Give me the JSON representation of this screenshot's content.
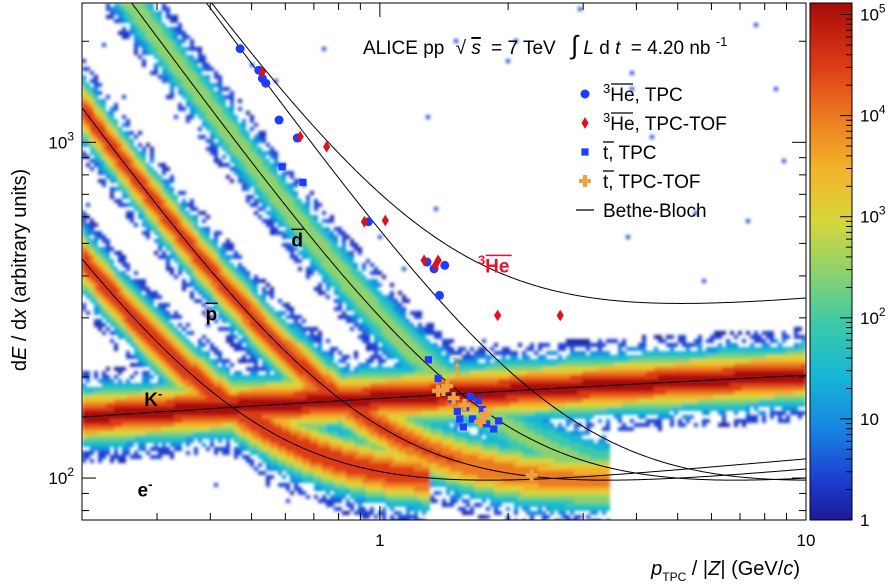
{
  "chart_data": {
    "type": "heatmap",
    "title": "ALICE pp",
    "title_parts": {
      "sqrt": "√",
      "s": "s",
      "eq": "= 7 TeV",
      "int_sym": "∫",
      "L": "L",
      "d": "d",
      "t": "t",
      "lumi_val": "= 4.20 nb",
      "lumi_exp": "-1"
    },
    "xlabel": {
      "p": "p",
      "sub": "TPC",
      "rest_a": " / |",
      "Z": "Z",
      "rest_b": "| (GeV/",
      "c": "c",
      "rest_c": ")"
    },
    "ylabel": {
      "d": "d",
      "E": "E",
      "mid": " / d",
      "x": "x",
      "rest": " (arbitrary units)"
    },
    "x_scale": "log",
    "y_scale": "log",
    "xlim": [
      0.2,
      10
    ],
    "ylim": [
      75,
      2600
    ],
    "x_ticks": [
      {
        "value": 1,
        "label": "1"
      },
      {
        "value": 10,
        "label": "10"
      }
    ],
    "y_ticks": [
      {
        "value": 100,
        "base": "10",
        "exp": "2"
      },
      {
        "value": 1000,
        "base": "10",
        "exp": "3"
      }
    ],
    "z_scale": "log",
    "zlim": [
      1,
      130000
    ],
    "colorbar_ticks": [
      {
        "value": 1,
        "base": "1",
        "exp": ""
      },
      {
        "value": 10,
        "base": "10",
        "exp": ""
      },
      {
        "value": 100,
        "base": "10",
        "exp": "2"
      },
      {
        "value": 1000,
        "base": "10",
        "exp": "3"
      },
      {
        "value": 10000,
        "base": "10",
        "exp": "4"
      },
      {
        "value": 100000,
        "base": "10",
        "exp": "5"
      }
    ],
    "band_labels": [
      {
        "id": "e",
        "base": "e",
        "sup": "-",
        "bar": false
      },
      {
        "id": "K",
        "base": "K",
        "sup": "-",
        "bar": false
      },
      {
        "id": "p",
        "base": "p",
        "sup": "",
        "bar": true
      },
      {
        "id": "d",
        "base": "d",
        "sup": "",
        "bar": true
      }
    ],
    "special_labels": [
      {
        "id": "he3",
        "pre": "3",
        "base": "He",
        "color": "#e8102a"
      },
      {
        "id": "t",
        "pre": "",
        "base": "t",
        "color": "#f0a040"
      }
    ],
    "legend": {
      "position": "top-right",
      "entries": [
        {
          "marker": "circle",
          "color": "#1e3cff",
          "sup": "3",
          "name": "He",
          "bar": true,
          "suffix": ", TPC"
        },
        {
          "marker": "diamond",
          "color": "#e0101e",
          "sup": "3",
          "name": "He",
          "bar": true,
          "suffix": ", TPC-TOF"
        },
        {
          "marker": "square",
          "color": "#1e3cff",
          "sup": "",
          "name": "t",
          "bar": true,
          "suffix": ", TPC"
        },
        {
          "marker": "cross",
          "color": "#f0a040",
          "sup": "",
          "name": "t",
          "bar": true,
          "suffix": ", TPC-TOF"
        },
        {
          "marker": "line",
          "color": "#000000",
          "sup": "",
          "name": "Bethe-Bloch",
          "bar": false,
          "suffix": ""
        }
      ]
    },
    "series": [
      {
        "marker": "circle",
        "color": "#1e3cff",
        "x": [
          0.47,
          0.52,
          0.53,
          0.54,
          0.58,
          0.64,
          0.94,
          1.29,
          1.34,
          1.42,
          1.38
        ],
        "y": [
          1900,
          1640,
          1550,
          1500,
          1165,
          1030,
          580,
          440,
          420,
          430,
          350
        ]
      },
      {
        "marker": "diamond",
        "color": "#e0101e",
        "x": [
          0.53,
          0.65,
          0.75,
          0.92,
          1.03,
          1.27,
          1.35,
          1.37,
          1.89,
          2.65
        ],
        "y": [
          1620,
          1040,
          970,
          580,
          585,
          445,
          430,
          445,
          305,
          305
        ]
      },
      {
        "marker": "square",
        "color": "#1e3cff",
        "x": [
          0.59,
          0.66,
          1.3,
          1.37,
          1.42,
          1.48,
          1.52,
          1.54,
          1.57,
          1.59,
          1.63,
          1.65,
          1.7,
          1.74,
          1.78,
          1.85,
          1.9
        ],
        "y": [
          845,
          760,
          225,
          198,
          182,
          172,
          158,
          150,
          142,
          162,
          175,
          150,
          170,
          160,
          145,
          140,
          148
        ]
      },
      {
        "marker": "cross",
        "color": "#f0a040",
        "x": [
          1.37,
          1.41,
          1.44,
          1.49,
          1.58,
          1.72,
          1.77,
          2.27
        ],
        "y": [
          182,
          183,
          188,
          173,
          165,
          147,
          155,
          102
        ]
      }
    ]
  }
}
